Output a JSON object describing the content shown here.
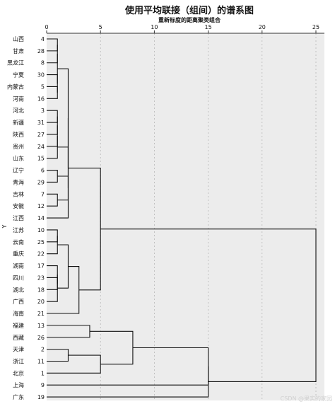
{
  "chart_data": {
    "type": "dendrogram",
    "title": "使用平均联接（组间）的谱系图",
    "subtitle": "重新标度的距离聚类组合",
    "ylabel": "Y",
    "x_ticks": [
      0,
      5,
      10,
      15,
      20,
      25
    ],
    "xlim": [
      0,
      25
    ],
    "grid": "vertical dashed lines",
    "leaves": [
      {
        "label": "山西",
        "index": "4"
      },
      {
        "label": "甘肃",
        "index": "28"
      },
      {
        "label": "黑龙江",
        "index": "8"
      },
      {
        "label": "宁夏",
        "index": "30"
      },
      {
        "label": "内蒙古",
        "index": "5"
      },
      {
        "label": "河南",
        "index": "16"
      },
      {
        "label": "河北",
        "index": "3"
      },
      {
        "label": "新疆",
        "index": "31"
      },
      {
        "label": "陕西",
        "index": "27"
      },
      {
        "label": "贵州",
        "index": "24"
      },
      {
        "label": "山东",
        "index": "15"
      },
      {
        "label": "辽宁",
        "index": "6"
      },
      {
        "label": "青海",
        "index": "29"
      },
      {
        "label": "吉林",
        "index": "7"
      },
      {
        "label": "安徽",
        "index": "12"
      },
      {
        "label": "江西",
        "index": "14"
      },
      {
        "label": "江苏",
        "index": "10"
      },
      {
        "label": "云南",
        "index": "25"
      },
      {
        "label": "重庆",
        "index": "22"
      },
      {
        "label": "湖南",
        "index": "17"
      },
      {
        "label": "四川",
        "index": "23"
      },
      {
        "label": "湖北",
        "index": "18"
      },
      {
        "label": "广西",
        "index": "20"
      },
      {
        "label": "海南",
        "index": "21"
      },
      {
        "label": "福建",
        "index": "13"
      },
      {
        "label": "西藏",
        "index": "26"
      },
      {
        "label": "天津",
        "index": "2"
      },
      {
        "label": "浙江",
        "index": "11"
      },
      {
        "label": "北京",
        "index": "1"
      },
      {
        "label": "上海",
        "index": "9"
      },
      {
        "label": "广东",
        "index": "19"
      }
    ],
    "merges": [
      {
        "left": "L0",
        "right": "L1",
        "height": 1
      },
      {
        "left": "M0",
        "right": "L2",
        "height": 1
      },
      {
        "left": "L4",
        "right": "L5",
        "height": 1
      },
      {
        "left": "L3",
        "right": "M2",
        "height": 1
      },
      {
        "left": "L6",
        "right": "L7",
        "height": 1
      },
      {
        "left": "M4",
        "right": "L8",
        "height": 1
      },
      {
        "left": "M5",
        "right": "L9",
        "height": 1
      },
      {
        "left": "M6",
        "right": "L10",
        "height": 1
      },
      {
        "left": "L11",
        "right": "L12",
        "height": 1
      },
      {
        "left": "L13",
        "right": "L14",
        "height": 1
      },
      {
        "left": "M8",
        "right": "M9",
        "height": 2
      },
      {
        "left": "M7",
        "right": "M10",
        "height": 2
      },
      {
        "left": "M1",
        "right": "M3",
        "height": 1
      },
      {
        "left": "M12",
        "right": "M11",
        "height": 2
      },
      {
        "left": "M13",
        "right": "L15",
        "height": 2
      },
      {
        "left": "L16",
        "right": "L17",
        "height": 1
      },
      {
        "left": "M15",
        "right": "L18",
        "height": 1
      },
      {
        "left": "L20",
        "right": "L21",
        "height": 1
      },
      {
        "left": "L19",
        "right": "M17",
        "height": 1
      },
      {
        "left": "M18",
        "right": "L22",
        "height": 1
      },
      {
        "left": "M16",
        "right": "M19",
        "height": 2
      },
      {
        "left": "M20",
        "right": "L23",
        "height": 3
      },
      {
        "left": "M14",
        "right": "M21",
        "height": 5
      },
      {
        "left": "L24",
        "right": "L25",
        "height": 4
      },
      {
        "left": "L26",
        "right": "L27",
        "height": 2
      },
      {
        "left": "M24",
        "right": "L28",
        "height": 5
      },
      {
        "left": "M23",
        "right": "M25",
        "height": 8
      },
      {
        "left": "M26",
        "right": "L29",
        "height": 15
      },
      {
        "left": "M27",
        "right": "L30",
        "height": 15
      },
      {
        "left": "M22",
        "right": "M28",
        "height": 25
      }
    ]
  },
  "watermark": "CSDN @果实的家园"
}
